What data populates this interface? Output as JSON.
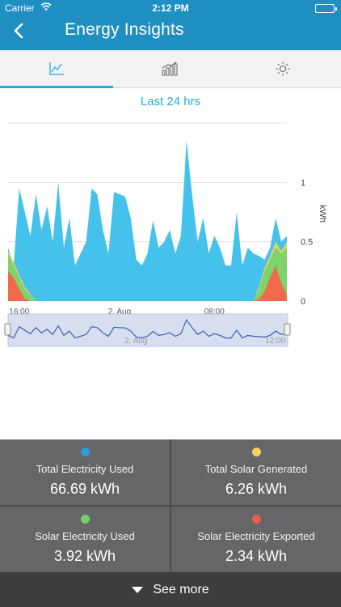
{
  "status_bar": {
    "carrier": "Carrier",
    "time": "2:12 PM"
  },
  "nav": {
    "title": "Energy Insights"
  },
  "tabs": [
    {
      "icon": "line-chart-icon",
      "active": true
    },
    {
      "icon": "bar-chart-icon",
      "active": false
    },
    {
      "icon": "sun-icon",
      "active": false
    }
  ],
  "chart_data": {
    "type": "area",
    "title": "Last 24 hrs",
    "ylabel": "kWh",
    "ylim": [
      0,
      1.5
    ],
    "y_ticks": [
      "0",
      "0.5",
      "1"
    ],
    "x_tick_labels": [
      "16:00",
      "2. Aug",
      "08:00"
    ],
    "navigator_labels": [
      "2. Aug",
      "12:00"
    ],
    "series": [
      {
        "name": "Total Electricity Used",
        "color": "#45c2ec",
        "x": [
          0,
          2,
          4,
          6,
          8,
          10,
          12,
          14,
          16,
          18,
          20,
          22,
          24,
          26,
          28,
          30,
          32,
          34,
          36,
          38,
          40,
          42,
          44,
          46,
          48,
          50,
          52,
          54,
          56,
          58,
          60,
          62,
          64,
          66,
          68,
          70,
          72,
          74,
          76,
          78,
          80,
          82,
          84,
          86,
          88,
          90,
          92,
          94,
          96,
          98,
          100
        ],
        "values": [
          0.45,
          0.3,
          0.95,
          0.75,
          0.55,
          0.9,
          0.6,
          0.8,
          0.5,
          1.0,
          0.45,
          0.7,
          0.3,
          0.4,
          0.5,
          0.95,
          0.9,
          0.6,
          0.4,
          0.92,
          0.9,
          0.88,
          0.7,
          0.35,
          0.3,
          0.4,
          0.68,
          0.45,
          0.5,
          0.6,
          0.4,
          0.55,
          1.35,
          0.9,
          0.5,
          0.7,
          0.4,
          0.55,
          0.45,
          0.3,
          0.3,
          0.75,
          0.3,
          0.45,
          0.4,
          0.38,
          0.35,
          0.45,
          0.7,
          0.5,
          0.55
        ]
      },
      {
        "name": "Solar Electricity Used",
        "color": "#7ed36a",
        "x": [
          0,
          2,
          4,
          6,
          8,
          10,
          88,
          90,
          92,
          94,
          96,
          98,
          100
        ],
        "values": [
          0.4,
          0.3,
          0.2,
          0.1,
          0.05,
          0,
          0,
          0.1,
          0.25,
          0.35,
          0.45,
          0.4,
          0.45
        ]
      },
      {
        "name": "Total Solar Generated",
        "color": "#e5d060",
        "x": [
          0,
          2,
          4,
          6,
          8,
          10,
          88,
          90,
          92,
          94,
          96,
          98,
          100
        ],
        "values": [
          0.42,
          0.33,
          0.22,
          0.12,
          0.06,
          0,
          0,
          0.12,
          0.28,
          0.38,
          0.5,
          0.42,
          0.5
        ]
      },
      {
        "name": "Solar Electricity Exported",
        "color": "#ef6a4c",
        "x": [
          0,
          2,
          4,
          6,
          8,
          10,
          88,
          90,
          92,
          94,
          96,
          98,
          100
        ],
        "values": [
          0.25,
          0.2,
          0.1,
          0.02,
          0,
          0,
          0,
          0.02,
          0.08,
          0.2,
          0.3,
          0.15,
          0.05
        ]
      }
    ]
  },
  "stats": [
    {
      "label": "Total Electricity Used",
      "value": "66.69 kWh",
      "color": "#2a9fd8"
    },
    {
      "label": "Total Solar Generated",
      "value": "6.26 kWh",
      "color": "#f2d35b"
    },
    {
      "label": "Solar Electricity Used",
      "value": "3.92 kWh",
      "color": "#78cf6a"
    },
    {
      "label": "Solar Electricity Exported",
      "value": "2.34 kWh",
      "color": "#ee5e48"
    }
  ],
  "footer": {
    "see_more_label": "See more"
  }
}
